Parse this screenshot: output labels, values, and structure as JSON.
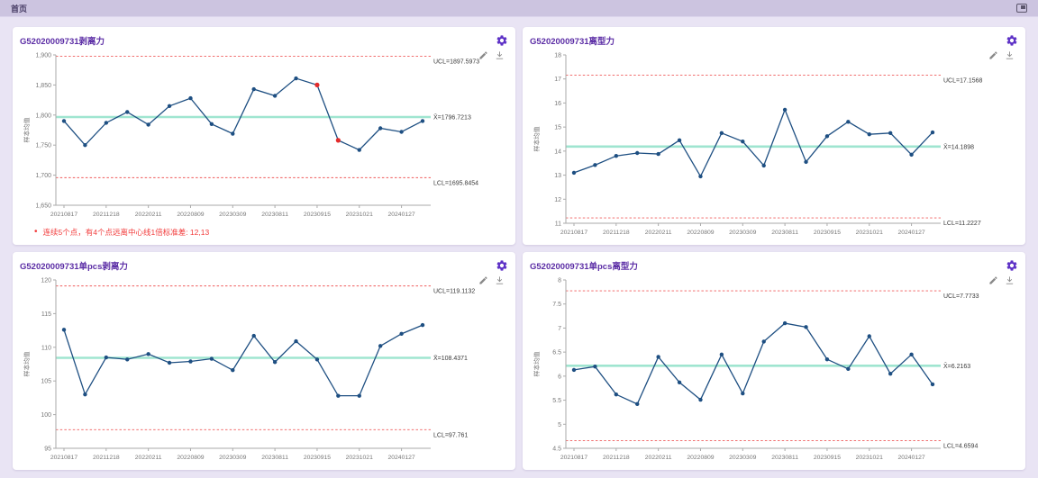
{
  "topbar": {
    "tab": "首页"
  },
  "icons": {
    "topbar_right": "expand-icon",
    "panel_corner": "gear-icon",
    "chart_tools": [
      "pencil-icon",
      "download-icon"
    ]
  },
  "colors": {
    "accent": "#5d31c6",
    "title": "#5b2da5",
    "series": "#1e4f82",
    "special_point": "#e42b2b",
    "control_line": "#ef5b5b",
    "center_line": "#9fe5d0",
    "axis": "#aaaaaa",
    "tick_text": "#777777",
    "label_text": "#3a3a3a",
    "note": "#f23c3c"
  },
  "panels": [
    {
      "title": "G52020009731剥离力",
      "annotation": "连续5个点，有4个点远离中心线1倍标准差: 12,13",
      "chart_data": {
        "type": "line",
        "ylabel": "样本均值",
        "ylim": [
          1650,
          1900
        ],
        "y_ticks": [
          1650,
          1700,
          1750,
          1800,
          1850,
          1900
        ],
        "x_tick_labels": [
          "20210817",
          "20211218",
          "20220211",
          "20220809",
          "20230309",
          "20230811",
          "20230915",
          "20231021",
          "20240127"
        ],
        "x_label_positions": [
          0,
          2,
          4,
          6,
          8,
          10,
          12,
          14,
          16
        ],
        "values": [
          1790,
          1750,
          1787,
          1805,
          1784,
          1815,
          1828,
          1785,
          1769,
          1843,
          1832,
          1861,
          1850,
          1758,
          1742,
          1778,
          1772,
          1790
        ],
        "special_point_indices": [
          12,
          13
        ],
        "ucl": {
          "label": "UCL=1897.5973",
          "value": 1897.5973
        },
        "center": {
          "label": "X̄=1796.7213",
          "value": 1796.7213
        },
        "lcl": {
          "label": "LCL=1695.8454",
          "value": 1695.8454
        }
      }
    },
    {
      "title": "G52020009731离型力",
      "chart_data": {
        "type": "line",
        "ylabel": "样本均值",
        "ylim": [
          11,
          18
        ],
        "y_ticks": [
          11,
          12,
          13,
          14,
          15,
          16,
          17,
          18
        ],
        "x_tick_labels": [
          "20210817",
          "20211218",
          "20220211",
          "20220809",
          "20230309",
          "20230811",
          "20230915",
          "20231021",
          "20240127"
        ],
        "x_label_positions": [
          0,
          2,
          4,
          6,
          8,
          10,
          12,
          14,
          16
        ],
        "values": [
          13.1,
          13.42,
          13.8,
          13.92,
          13.88,
          14.45,
          12.95,
          14.75,
          14.4,
          13.4,
          15.72,
          13.55,
          14.62,
          15.22,
          14.7,
          14.75,
          13.85,
          14.78
        ],
        "special_point_indices": [],
        "ucl": {
          "label": "UCL=17.1568",
          "value": 17.1568
        },
        "center": {
          "label": "X̄=14.1898",
          "value": 14.1898
        },
        "lcl": {
          "label": "LCL=11.2227",
          "value": 11.2227
        }
      }
    },
    {
      "title": "G52020009731单pcs剥离力",
      "chart_data": {
        "type": "line",
        "ylabel": "样本均值",
        "ylim": [
          95,
          120
        ],
        "y_ticks": [
          95,
          100,
          105,
          110,
          115,
          120
        ],
        "x_tick_labels": [
          "20210817",
          "20211218",
          "20220211",
          "20220809",
          "20230309",
          "20230811",
          "20230915",
          "20231021",
          "20240127"
        ],
        "x_label_positions": [
          0,
          2,
          4,
          6,
          8,
          10,
          12,
          14,
          16
        ],
        "values": [
          112.6,
          103.0,
          108.5,
          108.2,
          109.0,
          107.7,
          107.9,
          108.3,
          106.6,
          111.7,
          107.8,
          110.9,
          108.2,
          102.8,
          102.8,
          110.2,
          112.0,
          113.3
        ],
        "special_point_indices": [],
        "ucl": {
          "label": "UCL=119.1132",
          "value": 119.1132
        },
        "center": {
          "label": "X̄=108.4371",
          "value": 108.4371
        },
        "lcl": {
          "label": "LCL=97.761",
          "value": 97.761
        }
      }
    },
    {
      "title": "G52020009731单pcs离型力",
      "chart_data": {
        "type": "line",
        "ylabel": "样本均值",
        "ylim": [
          4.5,
          8
        ],
        "y_ticks": [
          4.5,
          5,
          5.5,
          6,
          6.5,
          7,
          7.5,
          8
        ],
        "x_tick_labels": [
          "20210817",
          "20211218",
          "20220211",
          "20220809",
          "20230309",
          "20230811",
          "20230915",
          "20231021",
          "20240127"
        ],
        "x_label_positions": [
          0,
          2,
          4,
          6,
          8,
          10,
          12,
          14,
          16
        ],
        "values": [
          6.13,
          6.2,
          5.62,
          5.42,
          6.4,
          5.87,
          5.51,
          6.45,
          5.64,
          6.72,
          7.1,
          7.02,
          6.35,
          6.15,
          6.83,
          6.05,
          6.45,
          5.83
        ],
        "special_point_indices": [],
        "ucl": {
          "label": "UCL=7.7733",
          "value": 7.7733
        },
        "center": {
          "label": "X̄=6.2163",
          "value": 6.2163
        },
        "lcl": {
          "label": "LCL=4.6594",
          "value": 4.6594
        }
      }
    }
  ]
}
